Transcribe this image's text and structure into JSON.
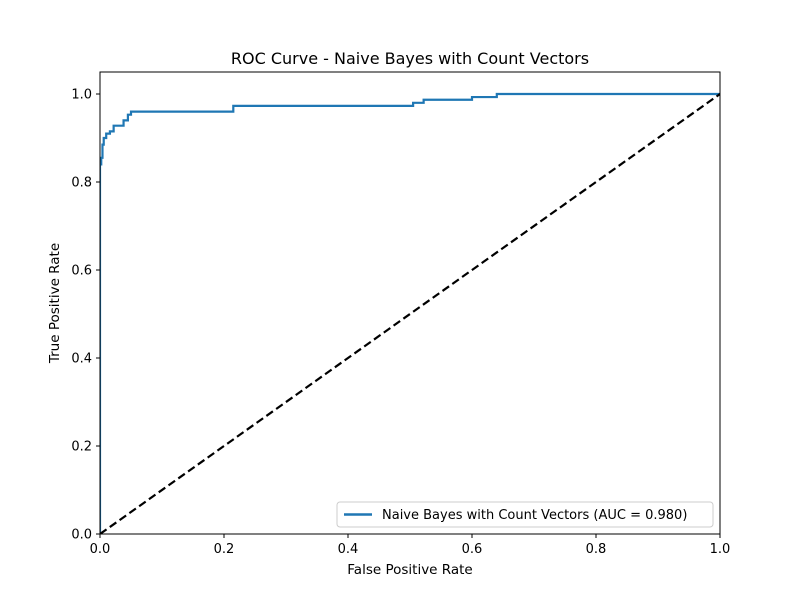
{
  "chart_data": {
    "type": "line",
    "title": "ROC Curve - Naive Bayes with Count Vectors",
    "xlabel": "False Positive Rate",
    "ylabel": "True Positive Rate",
    "xlim": [
      0,
      1
    ],
    "ylim": [
      0,
      1.05
    ],
    "x_ticks": [
      "0.0",
      "0.2",
      "0.4",
      "0.6",
      "0.8",
      "1.0"
    ],
    "y_ticks": [
      "0.0",
      "0.2",
      "0.4",
      "0.6",
      "0.8",
      "1.0"
    ],
    "grid": false,
    "legend_position": "lower-right",
    "series": [
      {
        "name": "Naive Bayes with Count Vectors (AUC = 0.980)",
        "color": "#1f77b4",
        "style": "solid-step",
        "x": [
          0,
          0,
          0.002,
          0.002,
          0.004,
          0.004,
          0.006,
          0.006,
          0.01,
          0.01,
          0.016,
          0.016,
          0.022,
          0.022,
          0.038,
          0.038,
          0.045,
          0.045,
          0.05,
          0.05,
          0.215,
          0.215,
          0.505,
          0.505,
          0.522,
          0.522,
          0.6,
          0.6,
          0.64,
          0.64,
          1.0
        ],
        "y": [
          0,
          0.84,
          0.84,
          0.855,
          0.855,
          0.885,
          0.885,
          0.9,
          0.9,
          0.91,
          0.91,
          0.915,
          0.915,
          0.928,
          0.928,
          0.94,
          0.94,
          0.953,
          0.953,
          0.96,
          0.96,
          0.973,
          0.973,
          0.98,
          0.98,
          0.987,
          0.987,
          0.993,
          0.993,
          1.0,
          1.0
        ]
      },
      {
        "name": "",
        "color": "#000000",
        "style": "dashed",
        "x": [
          0,
          1
        ],
        "y": [
          0,
          1
        ]
      }
    ]
  }
}
